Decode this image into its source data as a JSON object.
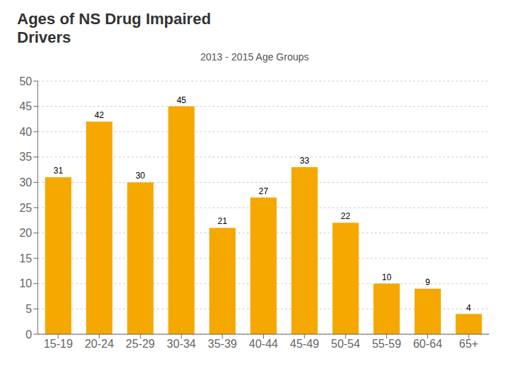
{
  "chart_data": {
    "type": "bar",
    "title": "Ages of NS Drug Impaired\nDrivers",
    "subtitle": "2013 - 2015 Age Groups",
    "categories": [
      "15-19",
      "20-24",
      "25-29",
      "30-34",
      "35-39",
      "40-44",
      "45-49",
      "50-54",
      "55-59",
      "60-64",
      "65+"
    ],
    "values": [
      31,
      42,
      30,
      45,
      21,
      27,
      33,
      22,
      10,
      9,
      4
    ],
    "color": "#F5A800",
    "ylim": [
      0,
      50
    ],
    "yticks": [
      0,
      5,
      10,
      15,
      20,
      25,
      30,
      35,
      40,
      45,
      50
    ],
    "grid": true,
    "data_labels": true
  }
}
